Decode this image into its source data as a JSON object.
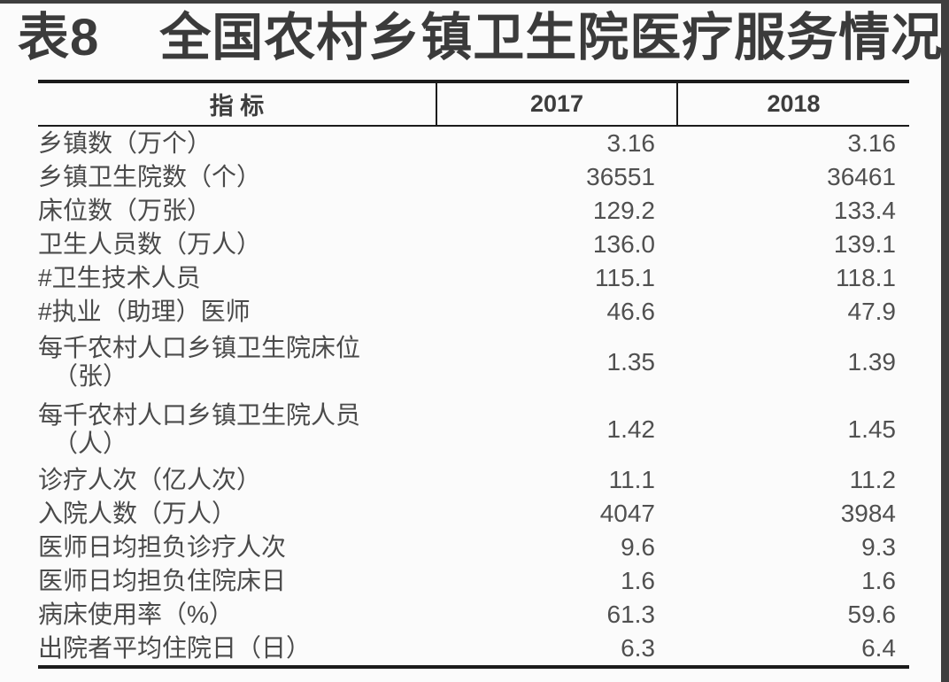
{
  "title": {
    "number": "表8",
    "text": "全国农村乡镇卫生院医疗服务情况"
  },
  "table": {
    "headers": [
      "指 标",
      "2017",
      "2018"
    ],
    "rows": [
      {
        "label": "乡镇数（万个）",
        "indent": 0,
        "y2017": "3.16",
        "y2018": "3.16"
      },
      {
        "label": "乡镇卫生院数（个）",
        "indent": 0,
        "y2017": "36551",
        "y2018": "36461"
      },
      {
        "label": "床位数（万张）",
        "indent": 0,
        "y2017": "129.2",
        "y2018": "133.4"
      },
      {
        "label": "卫生人员数（万人）",
        "indent": 0,
        "y2017": "136.0",
        "y2018": "139.1"
      },
      {
        "label": "#卫生技术人员",
        "indent": 1,
        "y2017": "115.1",
        "y2018": "118.1"
      },
      {
        "label": "#执业（助理）医师",
        "indent": 2,
        "y2017": "46.6",
        "y2018": "47.9"
      },
      {
        "label": "每千农村人口乡镇卫生院床位",
        "label2": "（张）",
        "indent": 0,
        "y2017": "1.35",
        "y2018": "1.39"
      },
      {
        "label": "每千农村人口乡镇卫生院人员",
        "label2": "（人）",
        "indent": 0,
        "y2017": "1.42",
        "y2018": "1.45"
      },
      {
        "label": "诊疗人次（亿人次）",
        "indent": 0,
        "y2017": "11.1",
        "y2018": "11.2"
      },
      {
        "label": "入院人数（万人）",
        "indent": 0,
        "y2017": "4047",
        "y2018": "3984"
      },
      {
        "label": "医师日均担负诊疗人次",
        "indent": 0,
        "y2017": "9.6",
        "y2018": "9.3"
      },
      {
        "label": "医师日均担负住院床日",
        "indent": 0,
        "y2017": "1.6",
        "y2018": "1.6"
      },
      {
        "label": "病床使用率（%）",
        "indent": 0,
        "y2017": "61.3",
        "y2018": "59.6"
      },
      {
        "label": "出院者平均住院日（日）",
        "indent": 0,
        "y2017": "6.3",
        "y2018": "6.4"
      }
    ]
  },
  "chart_data": {
    "type": "table",
    "title": "表8 全国农村乡镇卫生院医疗服务情况",
    "categories": [
      "乡镇数（万个）",
      "乡镇卫生院数（个）",
      "床位数（万张）",
      "卫生人员数（万人）",
      "#卫生技术人员",
      "#执业（助理）医师",
      "每千农村人口乡镇卫生院床位（张）",
      "每千农村人口乡镇卫生院人员（人）",
      "诊疗人次（亿人次）",
      "入院人数（万人）",
      "医师日均担负诊疗人次",
      "医师日均担负住院床日",
      "病床使用率（%）",
      "出院者平均住院日（日）"
    ],
    "series": [
      {
        "name": "2017",
        "values": [
          3.16,
          36551,
          129.2,
          136.0,
          115.1,
          46.6,
          1.35,
          1.42,
          11.1,
          4047,
          9.6,
          1.6,
          61.3,
          6.3
        ]
      },
      {
        "name": "2018",
        "values": [
          3.16,
          36461,
          133.4,
          139.1,
          118.1,
          47.9,
          1.39,
          1.45,
          11.2,
          3984,
          9.3,
          1.6,
          59.6,
          6.4
        ]
      }
    ]
  },
  "colors": {
    "background": "#fbfbfb",
    "border": "#1b1b1b",
    "title_text": "#3b3b3b",
    "body_text": "#4a4a4a",
    "edge_strip": "#3f3f3f"
  }
}
